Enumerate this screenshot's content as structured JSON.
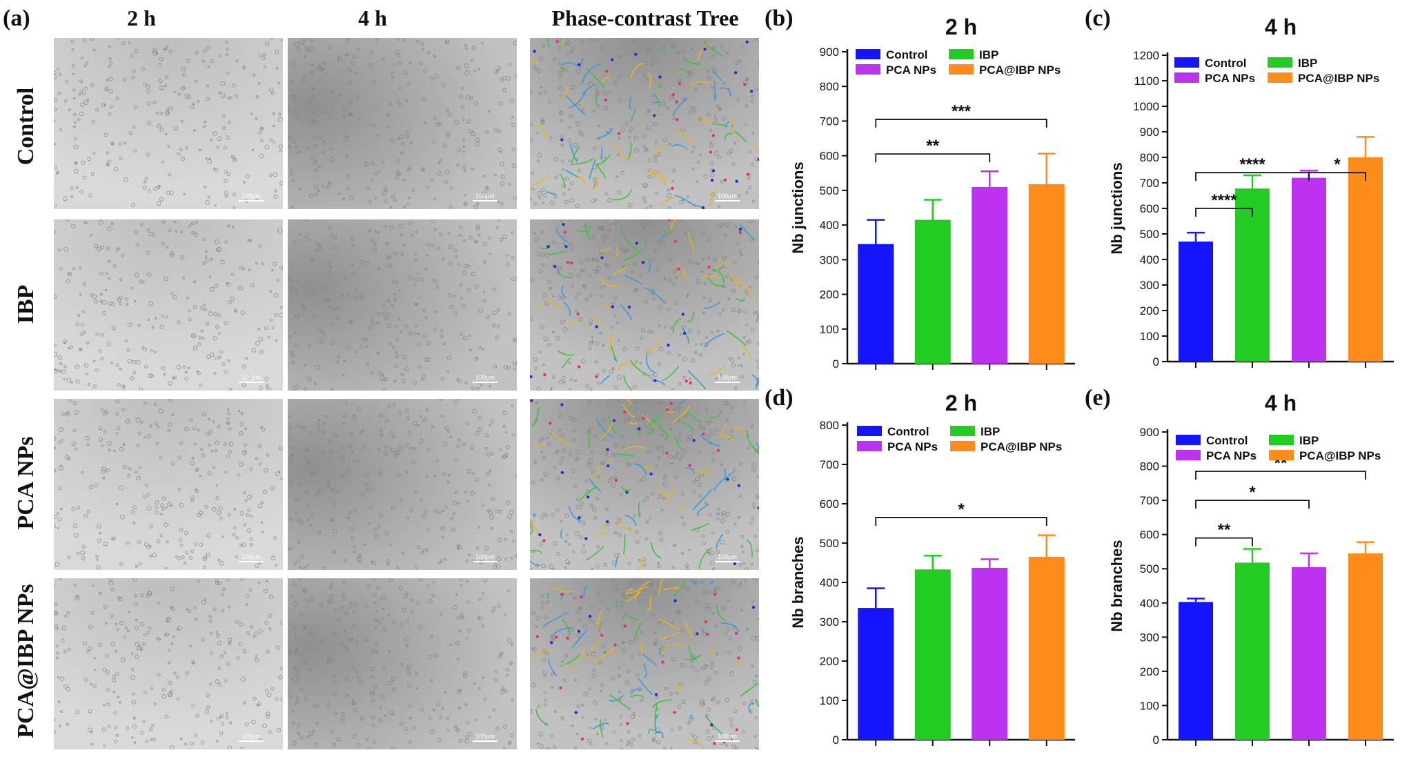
{
  "figure": {
    "panel_a": {
      "letter": "(a)",
      "column_headers": [
        "2 h",
        "4 h",
        "Phase-contrast Tree"
      ],
      "row_labels": [
        "Control",
        "IBP",
        "PCA NPs",
        "PCA@IBP NPs"
      ],
      "scale_bar_label": "100μm"
    }
  },
  "colors": {
    "Control": "#1414ff",
    "IBP": "#22cc22",
    "PCA NPs": "#bb33ee",
    "PCA@IBP NPs": "#ff8c1a"
  },
  "chart_data": [
    {
      "panel": "(b)",
      "type": "bar",
      "title": "2 h",
      "xlabel": "",
      "ylabel": "Nb junctions",
      "categories": [
        "Control",
        "IBP",
        "PCA NPs",
        "PCA@IBP NPs"
      ],
      "values": [
        345,
        415,
        510,
        518
      ],
      "errors": [
        70,
        58,
        45,
        88
      ],
      "ylim": [
        0,
        900
      ],
      "yticks": [
        0,
        100,
        200,
        300,
        400,
        500,
        600,
        700,
        800,
        900
      ],
      "legend": "top-left, two columns",
      "significance": [
        {
          "from": 0,
          "to": 2,
          "label": "**"
        },
        {
          "from": 0,
          "to": 3,
          "label": "***"
        }
      ]
    },
    {
      "panel": "(c)",
      "type": "bar",
      "title": "4 h",
      "xlabel": "",
      "ylabel": "Nb junctions",
      "categories": [
        "Control",
        "IBP",
        "PCA NPs",
        "PCA@IBP NPs"
      ],
      "values": [
        470,
        678,
        720,
        800
      ],
      "errors": [
        35,
        52,
        28,
        80
      ],
      "ylim": [
        0,
        1200
      ],
      "yticks": [
        0,
        100,
        200,
        300,
        400,
        500,
        600,
        700,
        800,
        900,
        1000,
        1100,
        1200
      ],
      "legend": "top-left, two columns",
      "significance": [
        {
          "from": 0,
          "to": 1,
          "label": "****"
        },
        {
          "from": 0,
          "to": 2,
          "label": "****"
        },
        {
          "from": 2,
          "to": 3,
          "label": "*"
        }
      ]
    },
    {
      "panel": "(d)",
      "type": "bar",
      "title": "2 h",
      "xlabel": "",
      "ylabel": "Nb branches",
      "categories": [
        "Control",
        "IBP",
        "PCA NPs",
        "PCA@IBP NPs"
      ],
      "values": [
        335,
        433,
        437,
        465
      ],
      "errors": [
        50,
        35,
        22,
        55
      ],
      "ylim": [
        0,
        800
      ],
      "yticks": [
        0,
        100,
        200,
        300,
        400,
        500,
        600,
        700,
        800
      ],
      "legend": "top-left, two columns",
      "significance": [
        {
          "from": 0,
          "to": 3,
          "label": "*"
        }
      ]
    },
    {
      "panel": "(e)",
      "type": "bar",
      "title": "4 h",
      "xlabel": "",
      "ylabel": "Nb branches",
      "categories": [
        "Control",
        "IBP",
        "PCA NPs",
        "PCA@IBP NPs"
      ],
      "values": [
        403,
        518,
        505,
        545
      ],
      "errors": [
        10,
        40,
        40,
        33
      ],
      "ylim": [
        0,
        900
      ],
      "yticks": [
        0,
        100,
        200,
        300,
        400,
        500,
        600,
        700,
        800,
        900
      ],
      "legend": "top-left, two columns",
      "significance": [
        {
          "from": 0,
          "to": 1,
          "label": "**"
        },
        {
          "from": 0,
          "to": 2,
          "label": "*"
        },
        {
          "from": 0,
          "to": 3,
          "label": "**"
        }
      ]
    }
  ]
}
